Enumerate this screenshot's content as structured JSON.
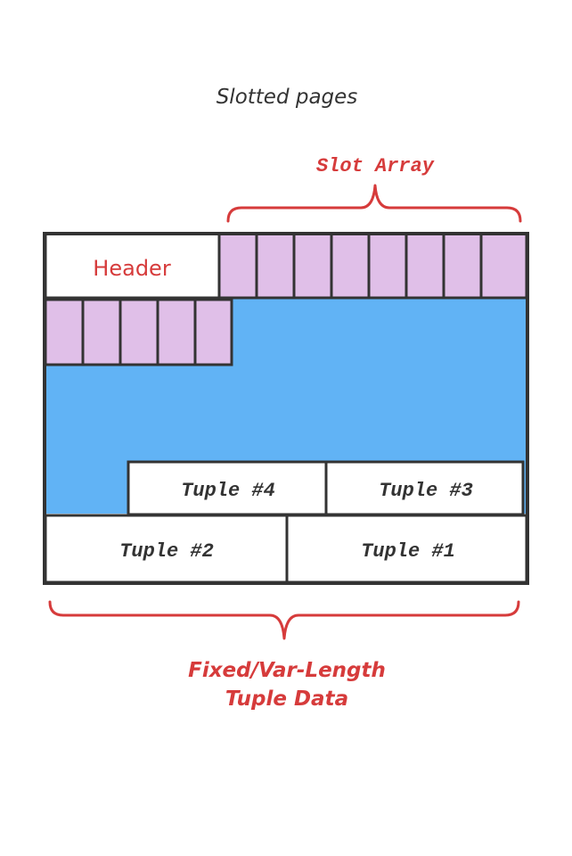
{
  "title": "Slotted pages",
  "slot_array_label": "Slot Array",
  "header_label": "Header",
  "tuples": {
    "t4": "Tuple #4",
    "t3": "Tuple #3",
    "t2": "Tuple #2",
    "t1": "Tuple #1"
  },
  "bottom_label": {
    "line1": "Fixed/Var-Length",
    "line2": "Tuple Data"
  },
  "colors": {
    "slot_fill": "#e0bfe8",
    "free_space": "#61b3f5",
    "annotation": "#d63b3b",
    "outline": "#333333"
  }
}
